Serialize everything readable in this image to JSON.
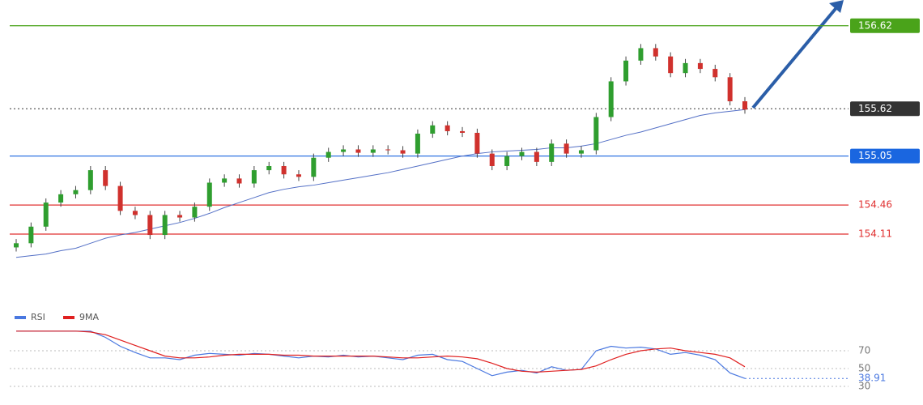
{
  "chart_data": [
    {
      "type": "candlestick",
      "ylim": [
        153.32,
        156.93
      ],
      "up_color": "#2f9e2f",
      "down_color": "#d0312d",
      "open": [
        153.95,
        154.0,
        154.2,
        154.49,
        154.59,
        154.64,
        154.88,
        154.69,
        154.39,
        154.34,
        154.1,
        154.34,
        154.31,
        154.44,
        154.73,
        154.78,
        154.72,
        154.88,
        154.93,
        154.83,
        154.8,
        155.03,
        155.1,
        155.13,
        155.09,
        155.13,
        155.12,
        155.08,
        155.32,
        155.42,
        155.35,
        155.33,
        155.08,
        154.93,
        155.05,
        155.1,
        154.98,
        155.2,
        155.08,
        155.12,
        155.52,
        155.95,
        156.2,
        156.35,
        156.25,
        156.05,
        156.17,
        156.1,
        156.0,
        155.71
      ],
      "high": [
        154.05,
        154.25,
        154.54,
        154.64,
        154.69,
        154.93,
        154.93,
        154.74,
        154.44,
        154.39,
        154.39,
        154.39,
        154.49,
        154.78,
        154.83,
        154.83,
        154.93,
        154.98,
        154.98,
        154.88,
        155.08,
        155.15,
        155.18,
        155.18,
        155.18,
        155.18,
        155.17,
        155.37,
        155.47,
        155.47,
        155.4,
        155.38,
        155.13,
        155.1,
        155.15,
        155.15,
        155.25,
        155.25,
        155.17,
        155.57,
        156.0,
        156.25,
        156.4,
        156.4,
        156.3,
        156.22,
        156.22,
        156.15,
        156.05,
        155.76
      ],
      "low": [
        153.9,
        153.95,
        154.15,
        154.44,
        154.54,
        154.59,
        154.64,
        154.34,
        154.29,
        154.05,
        154.05,
        154.26,
        154.26,
        154.39,
        154.68,
        154.67,
        154.67,
        154.83,
        154.78,
        154.75,
        154.75,
        154.98,
        155.05,
        155.04,
        155.04,
        155.07,
        155.03,
        155.03,
        155.27,
        155.3,
        155.28,
        155.03,
        154.88,
        154.88,
        155.0,
        154.93,
        154.93,
        155.03,
        155.03,
        155.07,
        155.47,
        155.9,
        156.15,
        156.2,
        156.0,
        156.0,
        156.05,
        155.95,
        155.66,
        155.56
      ],
      "close": [
        154.0,
        154.2,
        154.49,
        154.59,
        154.64,
        154.88,
        154.69,
        154.39,
        154.34,
        154.1,
        154.34,
        154.31,
        154.44,
        154.73,
        154.78,
        154.72,
        154.88,
        154.93,
        154.83,
        154.8,
        155.03,
        155.1,
        155.13,
        155.09,
        155.13,
        155.12,
        155.08,
        155.32,
        155.42,
        155.35,
        155.33,
        155.08,
        154.93,
        155.05,
        155.1,
        154.98,
        155.2,
        155.08,
        155.12,
        155.52,
        155.95,
        156.2,
        156.35,
        156.25,
        156.05,
        156.17,
        156.1,
        156.0,
        155.71,
        155.61
      ],
      "series": [
        {
          "color": "#5470c6",
          "values": [
            153.83,
            153.85,
            153.87,
            153.91,
            153.94,
            154.0,
            154.06,
            154.1,
            154.13,
            154.17,
            154.21,
            154.25,
            154.3,
            154.36,
            154.43,
            154.49,
            154.55,
            154.61,
            154.65,
            154.68,
            154.7,
            154.73,
            154.76,
            154.79,
            154.82,
            154.85,
            154.89,
            154.93,
            154.97,
            155.01,
            155.05,
            155.08,
            155.1,
            155.11,
            155.12,
            155.13,
            155.15,
            155.15,
            155.17,
            155.2,
            155.25,
            155.3,
            155.34,
            155.39,
            155.44,
            155.49,
            155.54,
            155.57,
            155.59,
            155.61
          ]
        }
      ],
      "levels": [
        {
          "value": 156.62,
          "color": "#4aa31a",
          "label_box": true,
          "dotted": false
        },
        {
          "value": 155.62,
          "color": "#333333",
          "label_box": true,
          "dotted": true
        },
        {
          "value": 155.05,
          "color": "#1a66e0",
          "label_box": true,
          "dotted": false
        },
        {
          "value": 154.46,
          "color": "#e03030",
          "label_box": false,
          "dotted": false
        },
        {
          "value": 154.11,
          "color": "#e03030",
          "label_box": false,
          "dotted": false
        }
      ]
    },
    {
      "type": "line",
      "ylim": [
        20,
        100
      ],
      "yticks": [
        70,
        50,
        30
      ],
      "grid": true,
      "series": [
        {
          "name": "RSI",
          "color": "#4a78e0",
          "values": [
            92,
            92,
            92,
            92,
            92,
            92,
            85,
            75,
            68,
            62,
            62,
            60,
            65,
            67,
            66,
            65,
            67,
            66,
            64,
            62,
            64,
            63,
            65,
            63,
            64,
            62,
            60,
            65,
            66,
            60,
            58,
            50,
            42,
            46,
            48,
            45,
            52,
            48,
            49,
            70,
            75,
            73,
            74,
            72,
            66,
            68,
            65,
            60,
            45,
            38.91
          ]
        },
        {
          "name": "9MA",
          "color": "#e02020",
          "values": [
            92,
            92,
            92,
            92,
            92,
            91,
            88,
            82,
            76,
            70,
            64,
            62,
            62,
            63,
            65,
            66,
            66,
            66,
            65,
            65,
            64,
            64,
            64,
            64,
            64,
            63,
            62,
            62,
            63,
            64,
            63,
            61,
            56,
            50,
            47,
            46,
            47,
            48,
            49,
            53,
            60,
            66,
            70,
            72,
            73,
            70,
            68,
            66,
            62,
            52
          ]
        }
      ]
    }
  ]
}
